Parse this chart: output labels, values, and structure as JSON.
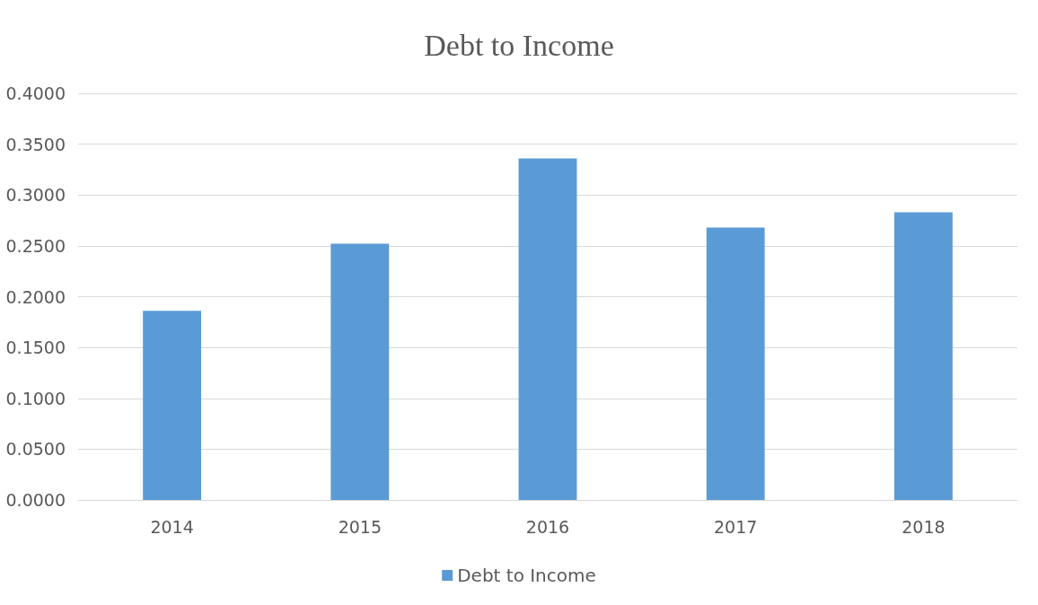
{
  "chart_data": {
    "type": "bar",
    "title": "Debt to Income",
    "categories": [
      "2014",
      "2015",
      "2016",
      "2017",
      "2018"
    ],
    "series": [
      {
        "name": "Debt to Income",
        "color": "#5b9bd5",
        "values": [
          0.186,
          0.252,
          0.336,
          0.268,
          0.283
        ]
      }
    ],
    "ylim": [
      0,
      0.4
    ],
    "yticks": [
      {
        "value": 0,
        "label": "0.0000"
      },
      {
        "value": 0.05,
        "label": "0.0500"
      },
      {
        "value": 0.1,
        "label": "0.1000"
      },
      {
        "value": 0.15,
        "label": "0.1500"
      },
      {
        "value": 0.2,
        "label": "0.2000"
      },
      {
        "value": 0.25,
        "label": "0.2500"
      },
      {
        "value": 0.3,
        "label": "0.3000"
      },
      {
        "value": 0.35,
        "label": "0.3500"
      },
      {
        "value": 0.4,
        "label": "0.4000"
      }
    ],
    "grid": "y",
    "legend": "bottom"
  }
}
